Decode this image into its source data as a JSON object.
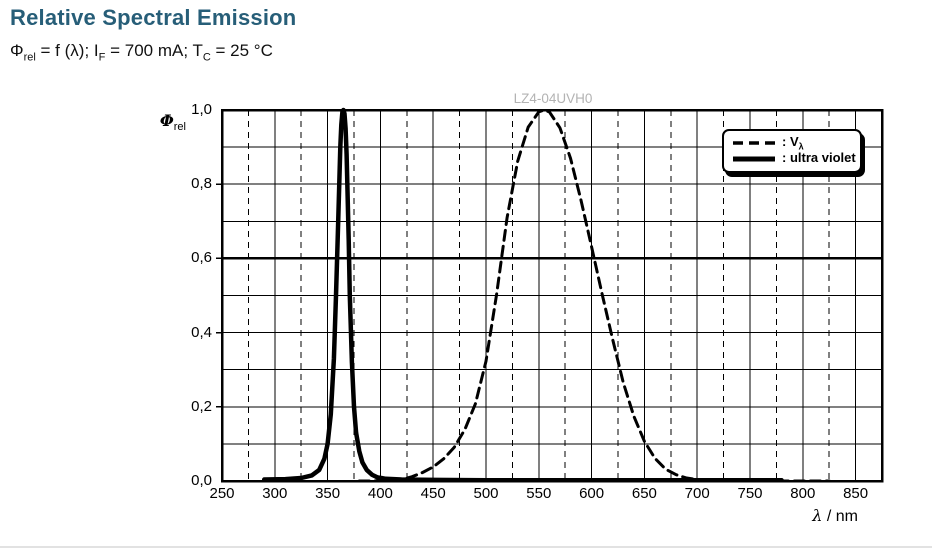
{
  "header": {
    "title": "Relative Spectral Emission",
    "subtitle": {
      "phi": "Φ",
      "phi_sub": "rel",
      "seg1": " = f (λ); I",
      "i_sub": "F",
      "seg2": " = 700 mA; T",
      "t_sub": "C",
      "seg3": " = 25 °C"
    }
  },
  "axis": {
    "y_main": "Φ",
    "y_sub": "rel",
    "x_main": "λ",
    "x_rest": " / nm"
  },
  "legend": {
    "items": [
      {
        "label_main": ": V",
        "label_sub": "λ",
        "style": "dashed"
      },
      {
        "label_main": ": ultra violet",
        "label_sub": "",
        "style": "solid"
      }
    ]
  },
  "colors": {
    "title": "#275e78",
    "watermark": "#b3b3b3",
    "curves": "#000000",
    "grid": "#000000"
  },
  "chart_data": {
    "type": "line",
    "title": "Relative Spectral Emission",
    "subtitle": "Φrel = f (λ); IF = 700 mA; TC = 25 °C",
    "watermark": "LZ4-04UVH0",
    "xlabel": "λ / nm",
    "ylabel": "Φrel",
    "xlim": [
      250,
      875
    ],
    "ylim": [
      0,
      1
    ],
    "x_ticks": [
      250,
      300,
      350,
      400,
      450,
      500,
      550,
      600,
      650,
      700,
      750,
      800,
      850
    ],
    "x_tick_labels": [
      "250",
      "300",
      "350",
      "400",
      "450",
      "500",
      "550",
      "600",
      "650",
      "700",
      "750",
      "800",
      "850"
    ],
    "y_ticks": [
      0,
      0.2,
      0.4,
      0.6,
      0.8,
      1.0
    ],
    "y_tick_labels": [
      "0,0",
      "0,2",
      "0,4",
      "0,6",
      "0,8",
      "1,0"
    ],
    "x_minor_step": 25,
    "y_minor_step": 0.1,
    "grid": true,
    "legend_position": "top-right",
    "series": [
      {
        "name": "V_lambda",
        "label": ": Vλ",
        "line": "dashed",
        "color": "#000000",
        "stroke_width": 3,
        "points": [
          [
            380,
            0.0001
          ],
          [
            400,
            0.0004
          ],
          [
            410,
            0.0012
          ],
          [
            420,
            0.004
          ],
          [
            430,
            0.0116
          ],
          [
            440,
            0.023
          ],
          [
            450,
            0.038
          ],
          [
            460,
            0.06
          ],
          [
            470,
            0.091
          ],
          [
            480,
            0.139
          ],
          [
            490,
            0.208
          ],
          [
            500,
            0.323
          ],
          [
            510,
            0.503
          ],
          [
            520,
            0.71
          ],
          [
            530,
            0.862
          ],
          [
            540,
            0.954
          ],
          [
            550,
            0.995
          ],
          [
            555,
            1.0
          ],
          [
            560,
            0.995
          ],
          [
            570,
            0.952
          ],
          [
            580,
            0.87
          ],
          [
            590,
            0.757
          ],
          [
            600,
            0.631
          ],
          [
            610,
            0.503
          ],
          [
            620,
            0.381
          ],
          [
            630,
            0.265
          ],
          [
            640,
            0.175
          ],
          [
            650,
            0.107
          ],
          [
            660,
            0.061
          ],
          [
            670,
            0.032
          ],
          [
            680,
            0.017
          ],
          [
            690,
            0.0082
          ],
          [
            700,
            0.0041
          ],
          [
            720,
            0.001
          ],
          [
            750,
            0.0003
          ],
          [
            780,
            0.0001
          ],
          [
            825,
            0.0
          ]
        ]
      },
      {
        "name": "ultra_violet",
        "label": ": ultra violet",
        "line": "solid",
        "color": "#000000",
        "stroke_width": 4.5,
        "points": [
          [
            290,
            0.004
          ],
          [
            310,
            0.005
          ],
          [
            325,
            0.008
          ],
          [
            335,
            0.015
          ],
          [
            342,
            0.03
          ],
          [
            347,
            0.06
          ],
          [
            350,
            0.1
          ],
          [
            353,
            0.18
          ],
          [
            356,
            0.33
          ],
          [
            358,
            0.5
          ],
          [
            360,
            0.7
          ],
          [
            362,
            0.9
          ],
          [
            363,
            0.96
          ],
          [
            364,
            0.995
          ],
          [
            365,
            1.0
          ],
          [
            366,
            0.99
          ],
          [
            367,
            0.95
          ],
          [
            368,
            0.88
          ],
          [
            370,
            0.65
          ],
          [
            371,
            0.5
          ],
          [
            373,
            0.32
          ],
          [
            375,
            0.2
          ],
          [
            377,
            0.13
          ],
          [
            380,
            0.08
          ],
          [
            383,
            0.05
          ],
          [
            387,
            0.03
          ],
          [
            392,
            0.017
          ],
          [
            397,
            0.01
          ],
          [
            405,
            0.006
          ],
          [
            420,
            0.004
          ],
          [
            450,
            0.003
          ],
          [
            500,
            0.002
          ],
          [
            600,
            0.002
          ],
          [
            780,
            0.002
          ]
        ]
      }
    ]
  }
}
